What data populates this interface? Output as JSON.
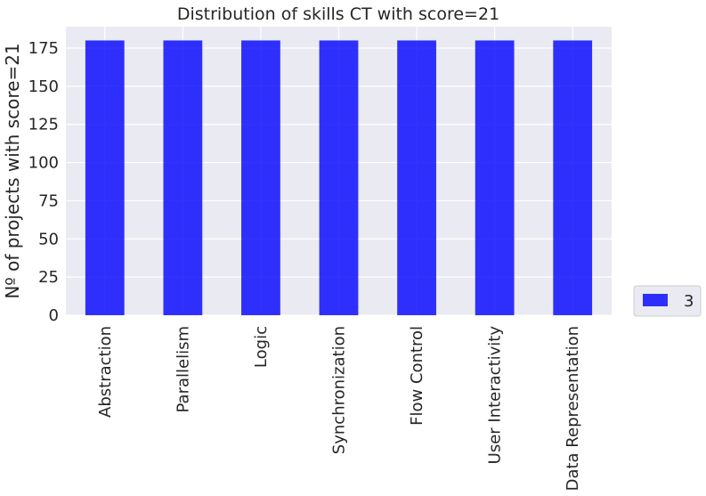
{
  "chart_data": {
    "type": "bar",
    "title": "Distribution of skills CT with score=21",
    "xlabel": "",
    "ylabel": "Nº of projects with score=21",
    "categories": [
      "Abstraction",
      "Parallelism",
      "Logic",
      "Synchronization",
      "Flow Control",
      "User Interactivity",
      "Data Representation"
    ],
    "series": [
      {
        "name": "3",
        "values": [
          180,
          180,
          180,
          180,
          180,
          180,
          180
        ],
        "color": "#0000ff"
      }
    ],
    "ylim": [
      0,
      189
    ],
    "yticks": [
      0,
      25,
      50,
      75,
      100,
      125,
      150,
      175
    ],
    "grid": true,
    "legend_position": "right-bottom-outside",
    "plot_background": "#eaeaf2"
  }
}
